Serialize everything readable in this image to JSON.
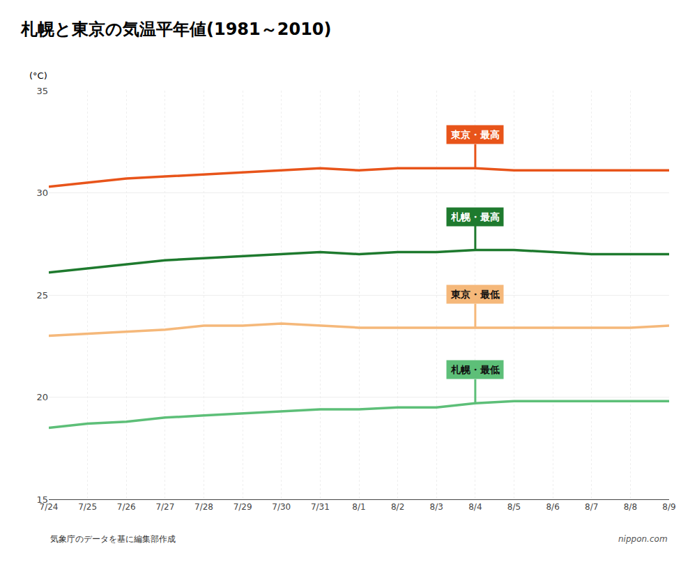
{
  "chart_data": {
    "type": "line",
    "title": "札幌と東京の気温平年値(1981～2010)",
    "ylabel": "(°C)",
    "source": "気象庁のデータを基に編集部作成",
    "credit": "nippon.com",
    "categories": [
      "7/24",
      "7/25",
      "7/26",
      "7/27",
      "7/28",
      "7/29",
      "7/30",
      "7/31",
      "8/1",
      "8/2",
      "8/3",
      "8/4",
      "8/5",
      "8/6",
      "8/7",
      "8/8",
      "8/9"
    ],
    "series": [
      {
        "color": "#E8541A",
        "values": [
          30.3,
          30.5,
          30.7,
          30.8,
          30.9,
          31.0,
          31.1,
          31.2,
          31.1,
          31.2,
          31.2,
          31.2,
          31.1,
          31.1,
          31.1,
          31.1,
          31.1
        ]
      },
      {
        "color": "#1E7A2E",
        "values": [
          26.1,
          26.3,
          26.5,
          26.7,
          26.8,
          26.9,
          27.0,
          27.1,
          27.0,
          27.1,
          27.1,
          27.2,
          27.2,
          27.1,
          27.0,
          27.0,
          27.0
        ]
      },
      {
        "color": "#F5B87A",
        "values": [
          23.0,
          23.1,
          23.2,
          23.3,
          23.5,
          23.5,
          23.6,
          23.5,
          23.4,
          23.4,
          23.4,
          23.4,
          23.4,
          23.4,
          23.4,
          23.4,
          23.5
        ]
      },
      {
        "color": "#5DBF78",
        "values": [
          18.5,
          18.7,
          18.8,
          19.0,
          19.1,
          19.2,
          19.3,
          19.4,
          19.4,
          19.5,
          19.5,
          19.7,
          19.8,
          19.8,
          19.8,
          19.8,
          19.8
        ]
      }
    ],
    "annotations": [
      {
        "text": "東京・最高",
        "x": "8/4",
        "y": 31.2,
        "color": "#E8541A",
        "text_color": "#FFFFFF"
      },
      {
        "text": "札幌・最高",
        "x": "8/4",
        "y": 27.2,
        "color": "#1E7A2E",
        "text_color": "#FFFFFF"
      },
      {
        "text": "東京・最低",
        "x": "8/4",
        "y": 23.4,
        "color": "#F5B87A",
        "text_color": "#111111"
      },
      {
        "text": "札幌・最低",
        "x": "8/4",
        "y": 19.7,
        "color": "#5DBF78",
        "text_color": "#111111"
      }
    ],
    "ylim": [
      15,
      35
    ],
    "yticks": [
      15,
      20,
      25,
      30,
      35
    ],
    "grid": true
  }
}
